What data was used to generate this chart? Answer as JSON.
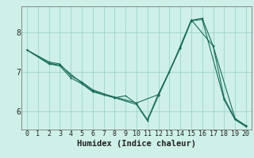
{
  "background_color": "#cef0e8",
  "grid_color": "#9ed4cb",
  "line_color": "#1a6b5a",
  "marker_color": "#1a6b5a",
  "xlabel": "Humidex (Indice chaleur)",
  "xlabel_fontsize": 7.5,
  "ytick_fontsize": 7,
  "xtick_fontsize": 6,
  "yticks": [
    6,
    7,
    8
  ],
  "xlim": [
    -0.5,
    20.5
  ],
  "ylim": [
    5.55,
    8.65
  ],
  "series1_x": [
    0,
    2,
    3,
    4,
    5,
    6,
    7,
    8,
    9,
    10,
    11,
    12,
    13,
    14,
    15,
    16,
    17,
    18,
    19,
    20
  ],
  "series1_y": [
    7.55,
    7.25,
    7.2,
    6.9,
    6.75,
    6.55,
    6.45,
    6.35,
    6.4,
    6.2,
    5.8,
    6.45,
    7.0,
    7.65,
    8.3,
    8.35,
    7.65,
    6.35,
    5.82,
    5.65
  ],
  "series2_x": [
    0,
    2,
    3,
    4,
    5,
    6,
    7,
    8,
    10,
    11,
    12,
    14,
    15,
    16,
    18,
    19,
    20
  ],
  "series2_y": [
    7.55,
    7.2,
    7.15,
    6.85,
    6.7,
    6.5,
    6.42,
    6.35,
    6.18,
    5.77,
    6.4,
    7.6,
    8.28,
    8.32,
    6.3,
    5.8,
    5.62
  ],
  "series3_x": [
    0,
    2,
    3,
    5,
    6,
    8,
    10,
    12,
    14,
    15,
    17,
    19,
    20
  ],
  "series3_y": [
    7.55,
    7.22,
    7.17,
    6.72,
    6.52,
    6.37,
    6.22,
    6.43,
    7.62,
    8.31,
    7.65,
    5.83,
    5.64
  ]
}
